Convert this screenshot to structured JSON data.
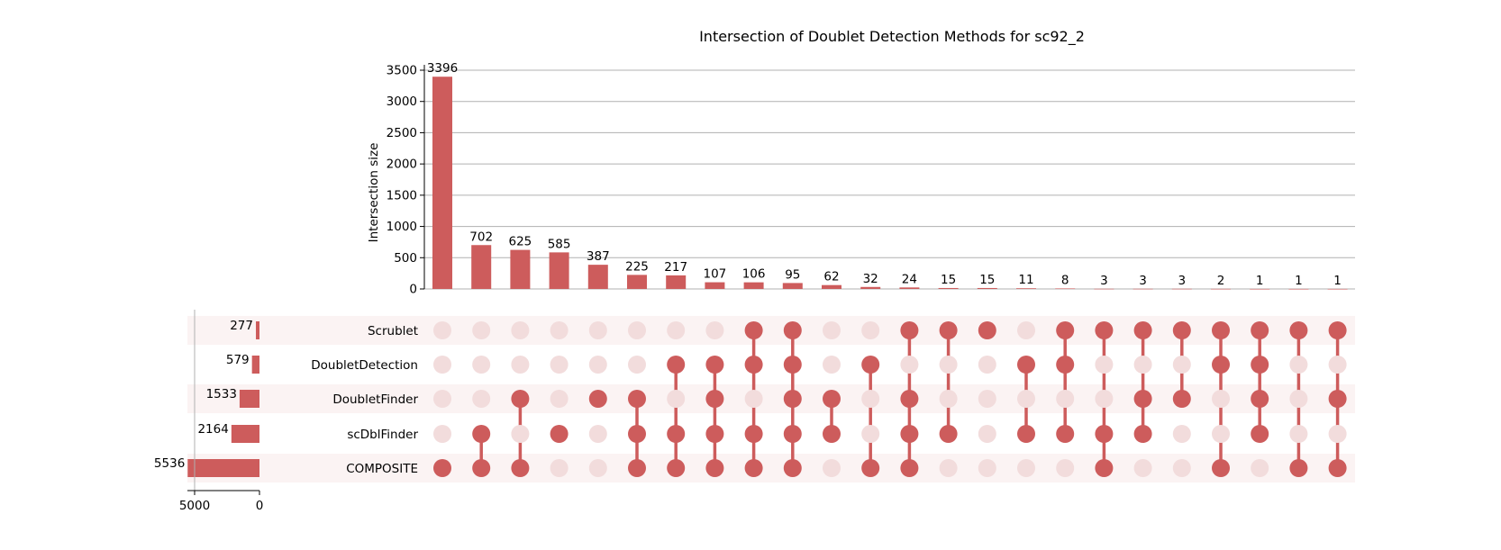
{
  "chart_data": {
    "type": "upset",
    "title": "Intersection of Doublet Detection Methods for sc92_2",
    "ylabel": "Intersection size",
    "ylim": [
      0,
      3500
    ],
    "yticks": [
      0,
      500,
      1000,
      1500,
      2000,
      2500,
      3000,
      3500
    ],
    "grid": true,
    "color": "#cd5c5c",
    "sets": [
      "Scrublet",
      "DoubletDetection",
      "DoubletFinder",
      "scDblFinder",
      "COMPOSITE"
    ],
    "set_sizes": [
      277,
      579,
      1533,
      2164,
      5536
    ],
    "set_size_xticks": [
      5000,
      0
    ],
    "intersections": [
      {
        "size": 3396,
        "members": [
          "COMPOSITE"
        ]
      },
      {
        "size": 702,
        "members": [
          "scDblFinder",
          "COMPOSITE"
        ]
      },
      {
        "size": 625,
        "members": [
          "DoubletFinder",
          "COMPOSITE"
        ]
      },
      {
        "size": 585,
        "members": [
          "scDblFinder"
        ]
      },
      {
        "size": 387,
        "members": [
          "DoubletFinder"
        ]
      },
      {
        "size": 225,
        "members": [
          "DoubletFinder",
          "scDblFinder",
          "COMPOSITE"
        ]
      },
      {
        "size": 217,
        "members": [
          "DoubletDetection",
          "scDblFinder",
          "COMPOSITE"
        ]
      },
      {
        "size": 107,
        "members": [
          "DoubletDetection",
          "DoubletFinder",
          "scDblFinder",
          "COMPOSITE"
        ]
      },
      {
        "size": 106,
        "members": [
          "Scrublet",
          "DoubletDetection",
          "scDblFinder",
          "COMPOSITE"
        ]
      },
      {
        "size": 95,
        "members": [
          "Scrublet",
          "DoubletDetection",
          "DoubletFinder",
          "scDblFinder",
          "COMPOSITE"
        ]
      },
      {
        "size": 62,
        "members": [
          "DoubletFinder",
          "scDblFinder"
        ]
      },
      {
        "size": 32,
        "members": [
          "DoubletDetection",
          "COMPOSITE"
        ]
      },
      {
        "size": 24,
        "members": [
          "Scrublet",
          "DoubletFinder",
          "scDblFinder",
          "COMPOSITE"
        ]
      },
      {
        "size": 15,
        "members": [
          "Scrublet",
          "scDblFinder"
        ]
      },
      {
        "size": 15,
        "members": [
          "Scrublet"
        ]
      },
      {
        "size": 11,
        "members": [
          "DoubletDetection",
          "scDblFinder"
        ]
      },
      {
        "size": 8,
        "members": [
          "Scrublet",
          "DoubletDetection",
          "scDblFinder"
        ]
      },
      {
        "size": 3,
        "members": [
          "Scrublet",
          "scDblFinder",
          "COMPOSITE"
        ]
      },
      {
        "size": 3,
        "members": [
          "Scrublet",
          "DoubletFinder",
          "scDblFinder"
        ]
      },
      {
        "size": 3,
        "members": [
          "Scrublet",
          "DoubletFinder"
        ]
      },
      {
        "size": 2,
        "members": [
          "Scrublet",
          "DoubletDetection",
          "COMPOSITE"
        ]
      },
      {
        "size": 1,
        "members": [
          "Scrublet",
          "DoubletDetection",
          "DoubletFinder",
          "scDblFinder"
        ]
      },
      {
        "size": 1,
        "members": [
          "Scrublet",
          "COMPOSITE"
        ]
      },
      {
        "size": 1,
        "members": [
          "Scrublet",
          "DoubletFinder",
          "COMPOSITE"
        ]
      }
    ]
  }
}
